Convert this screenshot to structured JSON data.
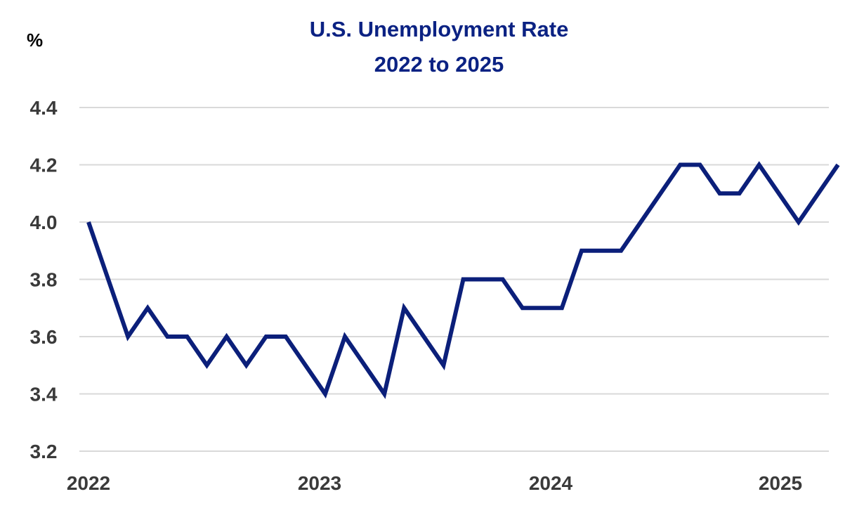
{
  "chart_data": {
    "type": "line",
    "title": "U.S. Unemployment Rate",
    "subtitle": "2022 to 2025",
    "ylabel": "%",
    "xlabel": "",
    "ylim": [
      3.2,
      4.4
    ],
    "yticks": [
      "3.2",
      "3.4",
      "3.6",
      "3.8",
      "4.0",
      "4.2",
      "4.4"
    ],
    "xtick_labels": [
      "2022",
      "2023",
      "2024",
      "2025"
    ],
    "grid": true,
    "legend": "none",
    "x": [
      "2022-01",
      "2022-02",
      "2022-03",
      "2022-04",
      "2022-05",
      "2022-06",
      "2022-07",
      "2022-08",
      "2022-09",
      "2022-10",
      "2022-11",
      "2022-12",
      "2023-01",
      "2023-02",
      "2023-03",
      "2023-04",
      "2023-05",
      "2023-06",
      "2023-07",
      "2023-08",
      "2023-09",
      "2023-10",
      "2023-11",
      "2023-12",
      "2024-01",
      "2024-02",
      "2024-03",
      "2024-04",
      "2024-05",
      "2024-06",
      "2024-07",
      "2024-08",
      "2024-09",
      "2024-10",
      "2024-11",
      "2024-12",
      "2025-01",
      "2025-02",
      "2025-03"
    ],
    "series": [
      {
        "values": [
          4.0,
          3.8,
          3.6,
          3.7,
          3.6,
          3.6,
          3.5,
          3.6,
          3.5,
          3.6,
          3.6,
          3.5,
          3.4,
          3.6,
          3.5,
          3.4,
          3.7,
          3.6,
          3.5,
          3.8,
          3.8,
          3.8,
          3.7,
          3.7,
          3.7,
          3.9,
          3.9,
          3.9,
          4.0,
          4.1,
          4.2,
          4.2,
          4.1,
          4.1,
          4.2,
          4.1,
          4.0,
          4.1,
          4.2
        ]
      }
    ],
    "colors": {
      "line": "#0b1f7a",
      "title": "#0b2283",
      "grid": "#d9d9d9",
      "tick_text": "#3a3a3a"
    }
  }
}
